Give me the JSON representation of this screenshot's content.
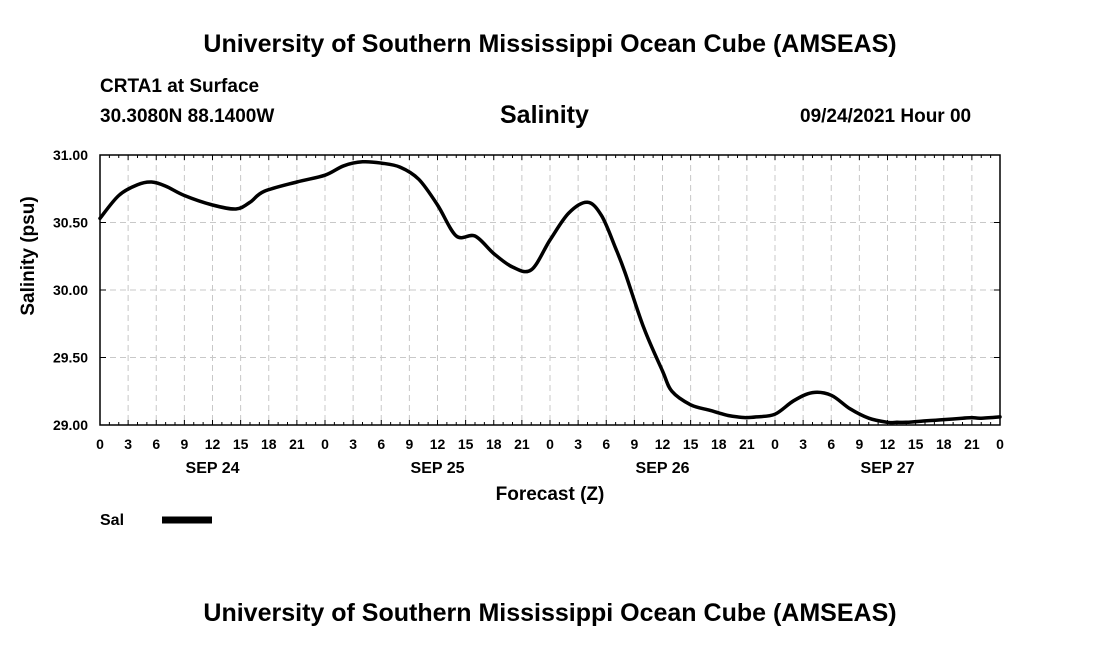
{
  "header": {
    "title_top": "University of Southern Mississippi Ocean Cube (AMSEAS)",
    "station": "CRTA1 at Surface",
    "coordinates": "30.3080N  88.1400W",
    "variable": "Salinity",
    "date": "09/24/2021 Hour 00"
  },
  "footer": {
    "title_bottom": "University of Southern Mississippi Ocean Cube (AMSEAS)"
  },
  "colors": {
    "line": "#000000",
    "grid": "#c8c8c8"
  },
  "chart_data": {
    "type": "line",
    "title": "Salinity",
    "xlabel": "Forecast (Z)",
    "ylabel": "Salinity (psu)",
    "xlim": [
      0,
      96
    ],
    "ylim": [
      29.0,
      31.0
    ],
    "yticks": [
      29.0,
      29.5,
      30.0,
      30.5,
      31.0
    ],
    "ytick_labels": [
      "29.00",
      "29.50",
      "30.00",
      "30.50",
      "31.00"
    ],
    "xticks": [
      0,
      3,
      6,
      9,
      12,
      15,
      18,
      21,
      24,
      27,
      30,
      33,
      36,
      39,
      42,
      45,
      48,
      51,
      54,
      57,
      60,
      63,
      66,
      69,
      72,
      75,
      78,
      81,
      84,
      87,
      90,
      93,
      96
    ],
    "xtick_labels": [
      "0",
      "3",
      "6",
      "9",
      "12",
      "15",
      "18",
      "21",
      "0",
      "3",
      "6",
      "9",
      "12",
      "15",
      "18",
      "21",
      "0",
      "3",
      "6",
      "9",
      "12",
      "15",
      "18",
      "21",
      "0",
      "3",
      "6",
      "9",
      "12",
      "15",
      "18",
      "21",
      "0"
    ],
    "date_labels": [
      {
        "x": 12,
        "label": "SEP 24"
      },
      {
        "x": 36,
        "label": "SEP 25"
      },
      {
        "x": 60,
        "label": "SEP 26"
      },
      {
        "x": 84,
        "label": "SEP 27"
      }
    ],
    "grid": true,
    "legend_position": "bottom-left",
    "series": [
      {
        "name": "Sal",
        "x": [
          0,
          2,
          4,
          5.5,
          7,
          9,
          12,
          14.5,
          16,
          17.5,
          21,
          24,
          26,
          28,
          30,
          32,
          34,
          36,
          38,
          40,
          42,
          44,
          46,
          48,
          50,
          52,
          53.5,
          55,
          56,
          58,
          60,
          61,
          63,
          65,
          66,
          67,
          68,
          69,
          70,
          72,
          74,
          76,
          78,
          80,
          82,
          84,
          85,
          86,
          88,
          90,
          92,
          93,
          94,
          96
        ],
        "y": [
          30.53,
          30.7,
          30.78,
          30.8,
          30.77,
          30.7,
          30.63,
          30.6,
          30.65,
          30.73,
          30.8,
          30.85,
          30.92,
          30.95,
          30.94,
          30.91,
          30.82,
          30.63,
          30.4,
          30.4,
          30.27,
          30.17,
          30.15,
          30.37,
          30.57,
          30.65,
          30.55,
          30.31,
          30.13,
          29.72,
          29.4,
          29.25,
          29.15,
          29.11,
          29.09,
          29.07,
          29.06,
          29.055,
          29.06,
          29.08,
          29.18,
          29.24,
          29.22,
          29.12,
          29.05,
          29.02,
          29.02,
          29.02,
          29.03,
          29.04,
          29.05,
          29.055,
          29.05,
          29.06
        ]
      }
    ]
  }
}
